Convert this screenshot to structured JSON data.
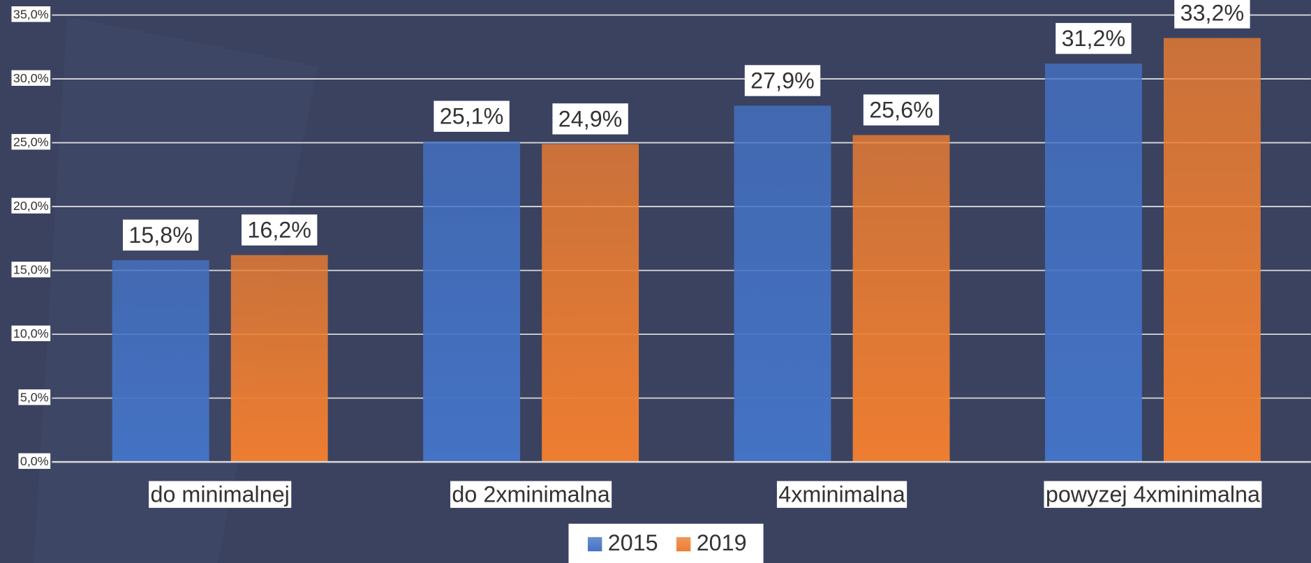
{
  "chart_data": {
    "type": "bar",
    "categories": [
      "do minimalnej",
      "do 2xminimalna",
      "4xminimalna",
      "powyzej 4xminimalna"
    ],
    "series": [
      {
        "name": "2015",
        "color": "#4472c4",
        "values": [
          15.8,
          25.1,
          27.9,
          31.2
        ],
        "value_labels": [
          "15,8%",
          "25,1%",
          "27,9%",
          "31,2%"
        ]
      },
      {
        "name": "2019",
        "color": "#ed7d31",
        "values": [
          16.2,
          24.9,
          25.6,
          33.2
        ],
        "value_labels": [
          "16,2%",
          "24,9%",
          "25,6%",
          "33,2%"
        ]
      }
    ],
    "ylim": [
      0,
      35
    ],
    "yticks": [
      {
        "value": 0,
        "label": "0,0%"
      },
      {
        "value": 5,
        "label": "5,0%"
      },
      {
        "value": 10,
        "label": "10,0%"
      },
      {
        "value": 15,
        "label": "15,0%"
      },
      {
        "value": 20,
        "label": "20,0%"
      },
      {
        "value": 25,
        "label": "25,0%"
      },
      {
        "value": 30,
        "label": "30,0%"
      },
      {
        "value": 35,
        "label": "35,0%"
      }
    ],
    "grid": true,
    "legend": "bottom"
  }
}
